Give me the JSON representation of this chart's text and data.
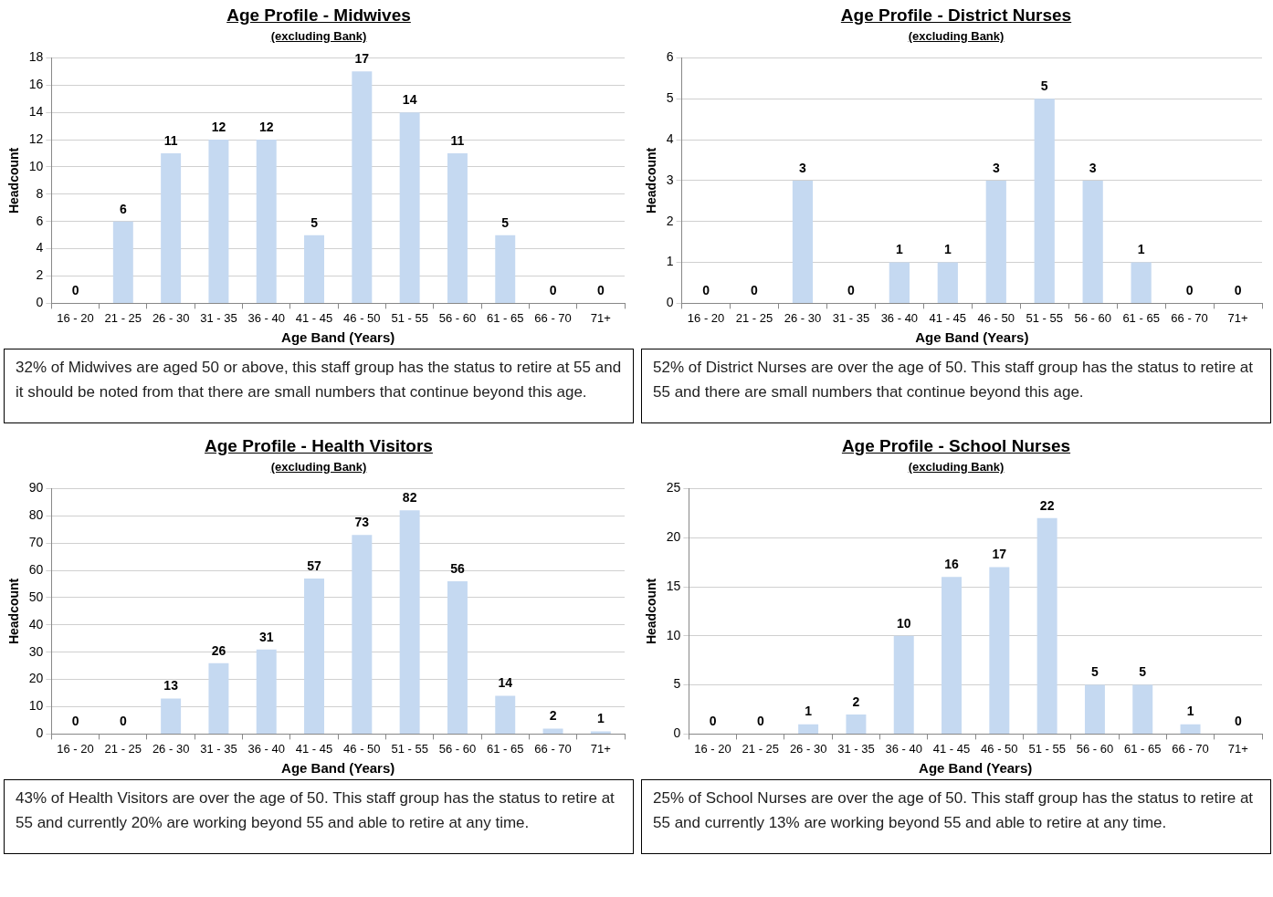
{
  "chart_data": [
    {
      "type": "bar",
      "title": "Age Profile - Midwives",
      "subtitle": "(excluding Bank)",
      "xlabel": "Age Band (Years)",
      "ylabel": "Headcount",
      "categories": [
        "16 - 20",
        "21 - 25",
        "26 - 30",
        "31 - 35",
        "36 - 40",
        "41 - 45",
        "46 - 50",
        "51 - 55",
        "56 - 60",
        "61 - 65",
        "66 - 70",
        "71+"
      ],
      "values": [
        0,
        6,
        11,
        12,
        12,
        5,
        17,
        14,
        11,
        5,
        0,
        0
      ],
      "color": "#c5d9f1",
      "ylim": [
        0,
        18
      ],
      "yticks": [
        0,
        2,
        4,
        6,
        8,
        10,
        12,
        14,
        16,
        18
      ],
      "grid": "y",
      "legend": false,
      "data_labels": true,
      "annotations": [
        "32% of Midwives are aged 50 or above, this staff group has the status to retire at 55 and it should be noted from that there are small numbers that continue beyond this age."
      ]
    },
    {
      "type": "bar",
      "title": "Age Profile - District Nurses",
      "subtitle": "(excluding Bank)",
      "xlabel": "Age Band (Years)",
      "ylabel": "Headcount",
      "categories": [
        "16 - 20",
        "21 - 25",
        "26 - 30",
        "31 - 35",
        "36 - 40",
        "41 - 45",
        "46 - 50",
        "51 - 55",
        "56 - 60",
        "61 - 65",
        "66 - 70",
        "71+"
      ],
      "values": [
        0,
        0,
        3,
        0,
        1,
        1,
        3,
        5,
        3,
        1,
        0,
        0
      ],
      "color": "#c5d9f1",
      "ylim": [
        0,
        6
      ],
      "yticks": [
        0,
        1,
        2,
        3,
        4,
        5,
        6
      ],
      "grid": "y",
      "legend": false,
      "data_labels": true,
      "annotations": [
        "52% of District Nurses are over the age of 50. This staff group has the status to retire at 55 and there are small numbers that continue beyond this age."
      ]
    },
    {
      "type": "bar",
      "title": "Age Profile - Health Visitors",
      "subtitle": "(excluding Bank)",
      "xlabel": "Age Band (Years)",
      "ylabel": "Headcount",
      "categories": [
        "16 - 20",
        "21 - 25",
        "26 - 30",
        "31 - 35",
        "36 - 40",
        "41 - 45",
        "46 - 50",
        "51 - 55",
        "56 - 60",
        "61 - 65",
        "66 - 70",
        "71+"
      ],
      "values": [
        0,
        0,
        13,
        26,
        31,
        57,
        73,
        82,
        56,
        14,
        2,
        1
      ],
      "color": "#c5d9f1",
      "ylim": [
        0,
        90
      ],
      "yticks": [
        0,
        10,
        20,
        30,
        40,
        50,
        60,
        70,
        80,
        90
      ],
      "grid": "y",
      "legend": false,
      "data_labels": true,
      "annotations": [
        "43% of Health Visitors are over the age of 50. This staff group has the status to retire at 55 and currently 20% are working beyond 55 and able to retire at any time."
      ]
    },
    {
      "type": "bar",
      "title": "Age Profile - School Nurses",
      "subtitle": "(excluding Bank)",
      "xlabel": "Age Band (Years)",
      "ylabel": "Headcount",
      "categories": [
        "16 - 20",
        "21 - 25",
        "26 - 30",
        "31 - 35",
        "36 - 40",
        "41 - 45",
        "46 - 50",
        "51 - 55",
        "56 - 60",
        "61 - 65",
        "66 - 70",
        "71+"
      ],
      "values": [
        0,
        0,
        1,
        2,
        10,
        16,
        17,
        22,
        5,
        5,
        1,
        0
      ],
      "color": "#c5d9f1",
      "ylim": [
        0,
        25
      ],
      "yticks": [
        0,
        5,
        10,
        15,
        20,
        25
      ],
      "grid": "y",
      "legend": false,
      "data_labels": true,
      "annotations": [
        "25% of School Nurses are over the age of 50. This staff group has the status to retire at 55 and currently 13% are working beyond 55 and able to retire at any time."
      ]
    }
  ]
}
